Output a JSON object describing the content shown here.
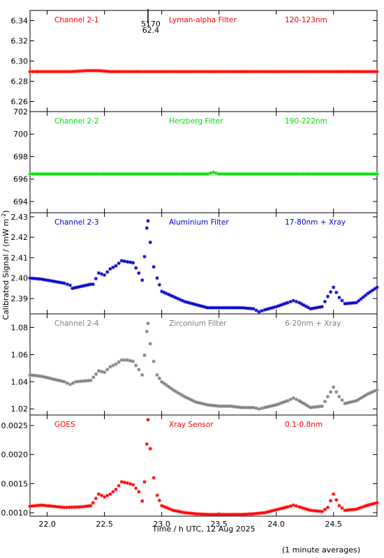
{
  "chart_data": [
    {
      "type": "scatter",
      "panel": "Channel 2-1",
      "labels": [
        "Channel 2-1",
        "Lyman-alpha Filter",
        "120-123nm"
      ],
      "color": "#ff0000",
      "ylim": [
        6.25,
        6.35
      ],
      "yticks": [
        6.26,
        6.28,
        6.3,
        6.32,
        6.34
      ],
      "tick_decimals": 2,
      "annotations": [
        "5170",
        "62.4"
      ],
      "annotation_x": 22.88,
      "points": [
        [
          21.85,
          6.2895
        ],
        [
          22.0,
          6.2895
        ],
        [
          22.2,
          6.2895
        ],
        [
          22.35,
          6.2905
        ],
        [
          22.45,
          6.2905
        ],
        [
          22.55,
          6.2895
        ],
        [
          22.8,
          6.2895
        ],
        [
          23.0,
          6.2895
        ],
        [
          23.3,
          6.2895
        ],
        [
          23.6,
          6.2895
        ],
        [
          23.9,
          6.2895
        ],
        [
          24.2,
          6.2895
        ],
        [
          24.5,
          6.2895
        ],
        [
          24.88,
          6.2895
        ]
      ]
    },
    {
      "type": "scatter",
      "panel": "Channel 2-2",
      "labels": [
        "Channel 2-2",
        "Herzberg Filter",
        "190-222nm"
      ],
      "color": "#00e000",
      "ylim": [
        693,
        702
      ],
      "yticks": [
        694,
        696,
        698,
        700,
        702
      ],
      "tick_decimals": 0,
      "points": [
        [
          21.85,
          696.45
        ],
        [
          22.2,
          696.45
        ],
        [
          22.6,
          696.45
        ],
        [
          23.0,
          696.45
        ],
        [
          23.4,
          696.45
        ],
        [
          23.45,
          696.6
        ],
        [
          23.5,
          696.45
        ],
        [
          23.9,
          696.45
        ],
        [
          24.3,
          696.45
        ],
        [
          24.88,
          696.45
        ]
      ]
    },
    {
      "type": "scatter",
      "panel": "Channel 2-3",
      "labels": [
        "Channel 2-3",
        "Aluminium Filter",
        "17-80nm + Xray"
      ],
      "color": "#0000cc",
      "ylim": [
        2.3825,
        2.432
      ],
      "yticks": [
        2.39,
        2.4,
        2.41,
        2.42,
        2.43
      ],
      "tick_decimals": 2,
      "points": [
        [
          21.85,
          2.4
        ],
        [
          21.95,
          2.3995
        ],
        [
          22.05,
          2.3985
        ],
        [
          22.15,
          2.3975
        ],
        [
          22.2,
          2.3965
        ],
        [
          22.22,
          2.395
        ],
        [
          22.3,
          2.396
        ],
        [
          22.38,
          2.397
        ],
        [
          22.4,
          2.397
        ],
        [
          22.45,
          2.4025
        ],
        [
          22.5,
          2.4015
        ],
        [
          22.55,
          2.4045
        ],
        [
          22.6,
          2.406
        ],
        [
          22.65,
          2.4085
        ],
        [
          22.7,
          2.408
        ],
        [
          22.75,
          2.4075
        ],
        [
          22.8,
          2.4025
        ],
        [
          22.83,
          2.399
        ],
        [
          22.85,
          2.4105
        ],
        [
          22.87,
          2.4245
        ],
        [
          22.88,
          2.428
        ],
        [
          22.9,
          2.4175
        ],
        [
          22.93,
          2.4055
        ],
        [
          22.96,
          2.4
        ],
        [
          23.0,
          2.3935
        ],
        [
          23.1,
          2.391
        ],
        [
          23.2,
          2.3885
        ],
        [
          23.3,
          2.387
        ],
        [
          23.4,
          2.3855
        ],
        [
          23.5,
          2.3855
        ],
        [
          23.6,
          2.3855
        ],
        [
          23.7,
          2.3855
        ],
        [
          23.8,
          2.385
        ],
        [
          23.85,
          2.3835
        ],
        [
          23.9,
          2.3845
        ],
        [
          24.0,
          2.386
        ],
        [
          24.1,
          2.388
        ],
        [
          24.15,
          2.389
        ],
        [
          24.2,
          2.388
        ],
        [
          24.3,
          2.385
        ],
        [
          24.4,
          2.386
        ],
        [
          24.45,
          2.391
        ],
        [
          24.5,
          2.3955
        ],
        [
          24.55,
          2.3905
        ],
        [
          24.6,
          2.3875
        ],
        [
          24.7,
          2.388
        ],
        [
          24.8,
          2.3925
        ],
        [
          24.88,
          2.3955
        ]
      ]
    },
    {
      "type": "scatter",
      "panel": "Channel 2-4",
      "labels": [
        "Channel 2-4",
        "Zirconium Filter",
        "6-20nm + Xray"
      ],
      "color": "#808080",
      "ylim": [
        1.0155,
        1.09
      ],
      "yticks": [
        1.02,
        1.04,
        1.06,
        1.08
      ],
      "tick_decimals": 2,
      "points": [
        [
          21.85,
          1.045
        ],
        [
          21.95,
          1.044
        ],
        [
          22.05,
          1.042
        ],
        [
          22.15,
          1.04
        ],
        [
          22.2,
          1.038
        ],
        [
          22.25,
          1.04
        ],
        [
          22.38,
          1.041
        ],
        [
          22.45,
          1.048
        ],
        [
          22.5,
          1.047
        ],
        [
          22.55,
          1.051
        ],
        [
          22.6,
          1.053
        ],
        [
          22.65,
          1.056
        ],
        [
          22.7,
          1.056
        ],
        [
          22.75,
          1.055
        ],
        [
          22.8,
          1.049
        ],
        [
          22.83,
          1.045
        ],
        [
          22.85,
          1.0595
        ],
        [
          22.87,
          1.077
        ],
        [
          22.88,
          1.083
        ],
        [
          22.9,
          1.068
        ],
        [
          22.93,
          1.055
        ],
        [
          22.96,
          1.045
        ],
        [
          23.0,
          1.04
        ],
        [
          23.1,
          1.034
        ],
        [
          23.2,
          1.029
        ],
        [
          23.3,
          1.025
        ],
        [
          23.4,
          1.023
        ],
        [
          23.5,
          1.022
        ],
        [
          23.6,
          1.022
        ],
        [
          23.7,
          1.021
        ],
        [
          23.8,
          1.021
        ],
        [
          23.85,
          1.02
        ],
        [
          23.9,
          1.021
        ],
        [
          24.0,
          1.023
        ],
        [
          24.1,
          1.026
        ],
        [
          24.15,
          1.028
        ],
        [
          24.2,
          1.026
        ],
        [
          24.3,
          1.021
        ],
        [
          24.4,
          1.022
        ],
        [
          24.45,
          1.029
        ],
        [
          24.5,
          1.036
        ],
        [
          24.55,
          1.029
        ],
        [
          24.6,
          1.024
        ],
        [
          24.7,
          1.026
        ],
        [
          24.8,
          1.031
        ],
        [
          24.88,
          1.034
        ]
      ]
    },
    {
      "type": "scatter",
      "panel": "GOES",
      "labels": [
        "GOES",
        "Xray Sensor",
        "0.1-0.8nm"
      ],
      "color": "#ff0000",
      "ylim": [
        0.00094,
        0.00268
      ],
      "yticks": [
        0.001,
        0.0015,
        0.002,
        0.0025
      ],
      "tick_decimals": 4,
      "xlim": [
        21.85,
        24.88
      ],
      "xticks": [
        22.0,
        22.5,
        23.0,
        23.5,
        24.0,
        24.5
      ],
      "points": [
        [
          21.85,
          0.00111
        ],
        [
          21.95,
          0.00113
        ],
        [
          22.05,
          0.00111
        ],
        [
          22.15,
          0.00109
        ],
        [
          22.3,
          0.0011
        ],
        [
          22.38,
          0.00112
        ],
        [
          22.4,
          0.00117
        ],
        [
          22.45,
          0.00132
        ],
        [
          22.5,
          0.00127
        ],
        [
          22.55,
          0.00132
        ],
        [
          22.6,
          0.0014
        ],
        [
          22.65,
          0.00153
        ],
        [
          22.7,
          0.00151
        ],
        [
          22.75,
          0.00148
        ],
        [
          22.8,
          0.00136
        ],
        [
          22.83,
          0.0012
        ],
        [
          22.85,
          0.00153
        ],
        [
          22.87,
          0.00218
        ],
        [
          22.88,
          0.0026
        ],
        [
          22.9,
          0.0021
        ],
        [
          22.93,
          0.0016
        ],
        [
          22.96,
          0.0013
        ],
        [
          23.0,
          0.00112
        ],
        [
          23.1,
          0.00104
        ],
        [
          23.2,
          0.001
        ],
        [
          23.3,
          0.00098
        ],
        [
          23.4,
          0.00097
        ],
        [
          23.5,
          0.00097
        ],
        [
          23.6,
          0.00097
        ],
        [
          23.7,
          0.00097
        ],
        [
          23.8,
          0.00098
        ],
        [
          23.9,
          0.001
        ],
        [
          24.0,
          0.00105
        ],
        [
          24.1,
          0.0011
        ],
        [
          24.15,
          0.00113
        ],
        [
          24.2,
          0.0011
        ],
        [
          24.3,
          0.00104
        ],
        [
          24.4,
          0.00102
        ],
        [
          24.45,
          0.00109
        ],
        [
          24.5,
          0.00132
        ],
        [
          24.55,
          0.00112
        ],
        [
          24.6,
          0.00104
        ],
        [
          24.7,
          0.00106
        ],
        [
          24.8,
          0.00113
        ],
        [
          24.88,
          0.00117
        ]
      ]
    }
  ],
  "axes": {
    "xlabel": "Time / h UTC, 12 Aug 2025",
    "ylabel_prefix": "Calibrated Signal / (mW m",
    "ylabel_sup": "-2",
    "ylabel_suffix": ")"
  },
  "footer_note": "(1 minute averages)"
}
